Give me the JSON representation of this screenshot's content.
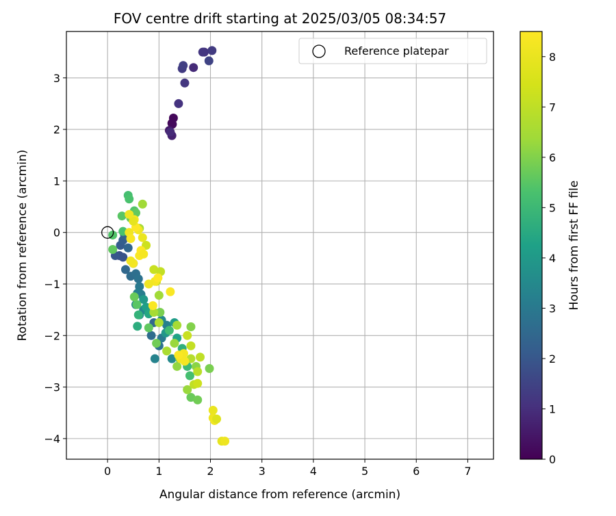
{
  "chart_data": {
    "type": "scatter",
    "title": "FOV centre drift starting at 2025/03/05 08:34:57",
    "xlabel": "Angular distance from reference (arcmin)",
    "ylabel": "Rotation from reference (arcmin)",
    "xlim": [
      -0.8,
      7.5
    ],
    "ylim": [
      -4.4,
      3.9
    ],
    "x_ticks": [
      0,
      1,
      2,
      3,
      4,
      5,
      6,
      7
    ],
    "y_ticks": [
      -4,
      -3,
      -2,
      -1,
      0,
      1,
      2,
      3
    ],
    "grid": true,
    "legend": {
      "position": "top-right",
      "entries": [
        "Reference platepar"
      ]
    },
    "reference_point": {
      "name": "Reference platepar",
      "x": 0,
      "y": 0
    },
    "colorbar": {
      "label": "Hours from first FF file",
      "min": 0,
      "max": 8.5,
      "ticks": [
        0,
        1,
        2,
        3,
        4,
        5,
        6,
        7,
        8
      ],
      "colormap": "viridis"
    },
    "series_columns": [
      "x",
      "y",
      "hours"
    ],
    "points": [
      [
        1.25,
        2.12,
        0.1
      ],
      [
        1.28,
        2.22,
        0.15
      ],
      [
        1.26,
        2.1,
        0.2
      ],
      [
        1.2,
        1.98,
        0.5
      ],
      [
        1.25,
        1.88,
        0.7
      ],
      [
        1.22,
        1.95,
        0.9
      ],
      [
        1.38,
        2.5,
        1.1
      ],
      [
        1.5,
        2.9,
        1.2
      ],
      [
        1.45,
        3.18,
        1.3
      ],
      [
        1.47,
        3.24,
        1.4
      ],
      [
        1.67,
        3.2,
        0.9
      ],
      [
        1.88,
        3.5,
        1.1
      ],
      [
        1.85,
        3.5,
        1.2
      ],
      [
        2.03,
        3.53,
        1.3
      ],
      [
        1.97,
        3.33,
        1.5
      ],
      [
        0.23,
        -0.45,
        1.8
      ],
      [
        0.3,
        -0.48,
        1.9
      ],
      [
        0.15,
        -0.45,
        2.0
      ],
      [
        0.25,
        -0.25,
        2.1
      ],
      [
        0.3,
        -0.15,
        2.2
      ],
      [
        0.33,
        -0.05,
        2.3
      ],
      [
        0.4,
        -0.3,
        2.4
      ],
      [
        0.35,
        -0.72,
        2.5
      ],
      [
        0.45,
        -0.85,
        2.6
      ],
      [
        0.55,
        -0.8,
        2.7
      ],
      [
        0.6,
        -0.9,
        2.8
      ],
      [
        0.5,
        -0.6,
        2.9
      ],
      [
        0.62,
        -1.05,
        3.0
      ],
      [
        0.65,
        -1.2,
        3.1
      ],
      [
        0.58,
        -1.18,
        3.2
      ],
      [
        0.55,
        -1.4,
        3.3
      ],
      [
        0.7,
        -1.5,
        3.4
      ],
      [
        0.62,
        -1.6,
        3.5
      ],
      [
        0.9,
        -1.75,
        2.5
      ],
      [
        1.05,
        -1.7,
        3.5
      ],
      [
        1.0,
        -2.2,
        2.8
      ],
      [
        1.05,
        -2.05,
        3.0
      ],
      [
        1.15,
        -1.8,
        3.2
      ],
      [
        1.25,
        -2.45,
        3.5
      ],
      [
        0.85,
        -2.0,
        2.6
      ],
      [
        0.92,
        -2.45,
        3.3
      ],
      [
        1.13,
        -1.95,
        3.9
      ],
      [
        0.7,
        -1.3,
        4.0
      ],
      [
        0.75,
        -1.45,
        4.2
      ],
      [
        0.8,
        -1.58,
        4.4
      ],
      [
        1.3,
        -1.75,
        4.1
      ],
      [
        1.35,
        -2.05,
        4.3
      ],
      [
        1.45,
        -2.4,
        4.5
      ],
      [
        0.58,
        -1.82,
        4.6
      ],
      [
        0.6,
        -1.6,
        4.8
      ],
      [
        1.45,
        -2.25,
        4.7
      ],
      [
        1.55,
        -2.6,
        5.0
      ],
      [
        1.6,
        -2.78,
        5.2
      ],
      [
        1.2,
        -1.9,
        5.1
      ],
      [
        0.4,
        0.72,
        5.2
      ],
      [
        0.42,
        0.65,
        5.3
      ],
      [
        0.52,
        0.42,
        5.4
      ],
      [
        0.55,
        0.38,
        5.6
      ],
      [
        0.28,
        0.32,
        5.5
      ],
      [
        0.45,
        0.28,
        5.7
      ],
      [
        0.3,
        0.02,
        5.3
      ],
      [
        0.1,
        -0.05,
        5.4
      ],
      [
        0.1,
        -0.33,
        5.6
      ],
      [
        0.57,
        -1.4,
        5.5
      ],
      [
        0.52,
        -1.25,
        5.7
      ],
      [
        0.95,
        -2.15,
        5.8
      ],
      [
        0.8,
        -1.85,
        5.6
      ],
      [
        1.02,
        -1.55,
        5.9
      ],
      [
        1.4,
        -2.45,
        5.6
      ],
      [
        1.62,
        -3.2,
        5.7
      ],
      [
        1.75,
        -3.25,
        5.8
      ],
      [
        1.98,
        -2.64,
        5.9
      ],
      [
        1.62,
        -1.83,
        6.0
      ],
      [
        1.72,
        -2.6,
        6.1
      ],
      [
        1.35,
        -2.6,
        6.2
      ],
      [
        1.55,
        -3.05,
        6.3
      ],
      [
        0.68,
        0.55,
        6.4
      ],
      [
        0.62,
        0.08,
        6.5
      ],
      [
        1.0,
        -1.22,
        6.4
      ],
      [
        0.9,
        -1.55,
        6.5
      ],
      [
        1.0,
        -1.75,
        6.6
      ],
      [
        1.15,
        -2.3,
        6.6
      ],
      [
        1.3,
        -2.15,
        6.3
      ],
      [
        1.35,
        -1.8,
        6.5
      ],
      [
        1.62,
        -2.45,
        6.8
      ],
      [
        1.75,
        -2.7,
        6.9
      ],
      [
        1.68,
        -2.95,
        7.0
      ],
      [
        1.62,
        -2.2,
        7.1
      ],
      [
        1.55,
        -2.0,
        7.2
      ],
      [
        1.8,
        -2.42,
        7.0
      ],
      [
        1.75,
        -2.93,
        7.3
      ],
      [
        0.9,
        -0.72,
        7.2
      ],
      [
        1.03,
        -0.76,
        7.1
      ],
      [
        0.75,
        -0.25,
        7.3
      ],
      [
        0.95,
        -0.95,
        7.4
      ],
      [
        2.05,
        -3.45,
        8.0
      ],
      [
        2.05,
        -3.6,
        8.1
      ],
      [
        2.08,
        -3.65,
        8.2
      ],
      [
        2.12,
        -3.62,
        7.7
      ],
      [
        2.22,
        -4.05,
        7.9
      ],
      [
        2.28,
        -4.05,
        8.1
      ],
      [
        1.42,
        -2.45,
        8.2
      ],
      [
        1.48,
        -2.35,
        8.3
      ],
      [
        1.5,
        -2.5,
        8.3
      ],
      [
        1.38,
        -2.38,
        8.4
      ],
      [
        1.22,
        -1.15,
        8.4
      ],
      [
        0.92,
        -0.95,
        8.3
      ],
      [
        0.8,
        -1.0,
        8.2
      ],
      [
        0.88,
        -1.42,
        8.4
      ],
      [
        0.98,
        -0.88,
        8.5
      ],
      [
        0.5,
        -0.6,
        8.3
      ],
      [
        0.45,
        -0.55,
        8.2
      ],
      [
        0.62,
        -0.45,
        8.4
      ],
      [
        0.65,
        -0.35,
        8.5
      ],
      [
        0.7,
        -0.42,
        8.3
      ],
      [
        0.42,
        0.0,
        8.2
      ],
      [
        0.45,
        -0.12,
        8.4
      ],
      [
        0.52,
        0.25,
        8.3
      ],
      [
        0.6,
        0.05,
        8.2
      ],
      [
        0.55,
        0.1,
        8.5
      ],
      [
        0.5,
        0.22,
        7.9
      ],
      [
        0.68,
        -0.1,
        8.0
      ],
      [
        0.42,
        0.35,
        8.1
      ]
    ]
  }
}
